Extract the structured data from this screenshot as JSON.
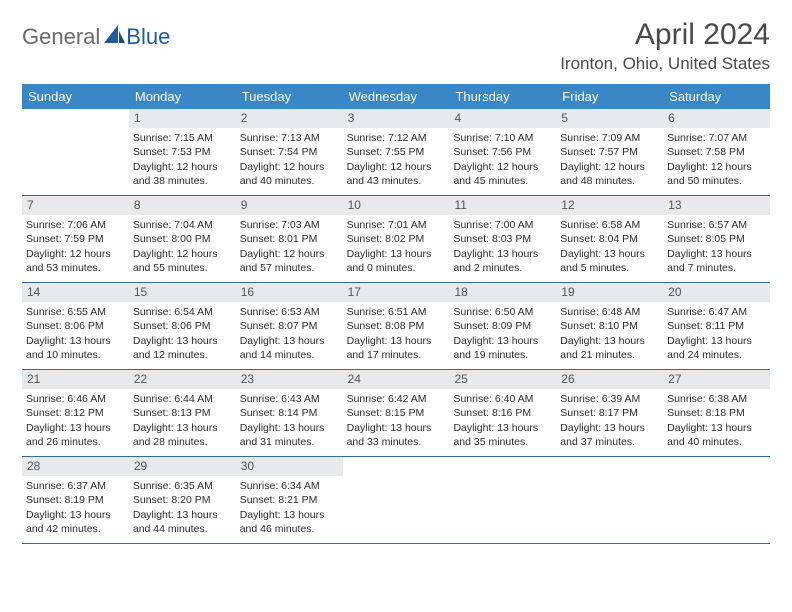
{
  "logo": {
    "text1": "General",
    "text2": "Blue"
  },
  "title": "April 2024",
  "location": "Ironton, Ohio, United States",
  "colors": {
    "header_bg": "#3a87c8",
    "header_text": "#ffffff",
    "daynum_bg": "#e8e9ea",
    "daynum_text": "#555555",
    "body_text": "#2b2b2b",
    "row_border": "#2f6aa3",
    "logo_gray": "#6a6a6a",
    "logo_blue": "#1f5c9e",
    "title_color": "#4a4a4a"
  },
  "dayNames": [
    "Sunday",
    "Monday",
    "Tuesday",
    "Wednesday",
    "Thursday",
    "Friday",
    "Saturday"
  ],
  "weeks": [
    [
      {
        "empty": true
      },
      {
        "num": "1",
        "sunrise": "7:15 AM",
        "sunset": "7:53 PM",
        "daylight": "12 hours and 38 minutes."
      },
      {
        "num": "2",
        "sunrise": "7:13 AM",
        "sunset": "7:54 PM",
        "daylight": "12 hours and 40 minutes."
      },
      {
        "num": "3",
        "sunrise": "7:12 AM",
        "sunset": "7:55 PM",
        "daylight": "12 hours and 43 minutes."
      },
      {
        "num": "4",
        "sunrise": "7:10 AM",
        "sunset": "7:56 PM",
        "daylight": "12 hours and 45 minutes."
      },
      {
        "num": "5",
        "sunrise": "7:09 AM",
        "sunset": "7:57 PM",
        "daylight": "12 hours and 48 minutes."
      },
      {
        "num": "6",
        "sunrise": "7:07 AM",
        "sunset": "7:58 PM",
        "daylight": "12 hours and 50 minutes."
      }
    ],
    [
      {
        "num": "7",
        "sunrise": "7:06 AM",
        "sunset": "7:59 PM",
        "daylight": "12 hours and 53 minutes."
      },
      {
        "num": "8",
        "sunrise": "7:04 AM",
        "sunset": "8:00 PM",
        "daylight": "12 hours and 55 minutes."
      },
      {
        "num": "9",
        "sunrise": "7:03 AM",
        "sunset": "8:01 PM",
        "daylight": "12 hours and 57 minutes."
      },
      {
        "num": "10",
        "sunrise": "7:01 AM",
        "sunset": "8:02 PM",
        "daylight": "13 hours and 0 minutes."
      },
      {
        "num": "11",
        "sunrise": "7:00 AM",
        "sunset": "8:03 PM",
        "daylight": "13 hours and 2 minutes."
      },
      {
        "num": "12",
        "sunrise": "6:58 AM",
        "sunset": "8:04 PM",
        "daylight": "13 hours and 5 minutes."
      },
      {
        "num": "13",
        "sunrise": "6:57 AM",
        "sunset": "8:05 PM",
        "daylight": "13 hours and 7 minutes."
      }
    ],
    [
      {
        "num": "14",
        "sunrise": "6:55 AM",
        "sunset": "8:06 PM",
        "daylight": "13 hours and 10 minutes."
      },
      {
        "num": "15",
        "sunrise": "6:54 AM",
        "sunset": "8:06 PM",
        "daylight": "13 hours and 12 minutes."
      },
      {
        "num": "16",
        "sunrise": "6:53 AM",
        "sunset": "8:07 PM",
        "daylight": "13 hours and 14 minutes."
      },
      {
        "num": "17",
        "sunrise": "6:51 AM",
        "sunset": "8:08 PM",
        "daylight": "13 hours and 17 minutes."
      },
      {
        "num": "18",
        "sunrise": "6:50 AM",
        "sunset": "8:09 PM",
        "daylight": "13 hours and 19 minutes."
      },
      {
        "num": "19",
        "sunrise": "6:48 AM",
        "sunset": "8:10 PM",
        "daylight": "13 hours and 21 minutes."
      },
      {
        "num": "20",
        "sunrise": "6:47 AM",
        "sunset": "8:11 PM",
        "daylight": "13 hours and 24 minutes."
      }
    ],
    [
      {
        "num": "21",
        "sunrise": "6:46 AM",
        "sunset": "8:12 PM",
        "daylight": "13 hours and 26 minutes."
      },
      {
        "num": "22",
        "sunrise": "6:44 AM",
        "sunset": "8:13 PM",
        "daylight": "13 hours and 28 minutes."
      },
      {
        "num": "23",
        "sunrise": "6:43 AM",
        "sunset": "8:14 PM",
        "daylight": "13 hours and 31 minutes."
      },
      {
        "num": "24",
        "sunrise": "6:42 AM",
        "sunset": "8:15 PM",
        "daylight": "13 hours and 33 minutes."
      },
      {
        "num": "25",
        "sunrise": "6:40 AM",
        "sunset": "8:16 PM",
        "daylight": "13 hours and 35 minutes."
      },
      {
        "num": "26",
        "sunrise": "6:39 AM",
        "sunset": "8:17 PM",
        "daylight": "13 hours and 37 minutes."
      },
      {
        "num": "27",
        "sunrise": "6:38 AM",
        "sunset": "8:18 PM",
        "daylight": "13 hours and 40 minutes."
      }
    ],
    [
      {
        "num": "28",
        "sunrise": "6:37 AM",
        "sunset": "8:19 PM",
        "daylight": "13 hours and 42 minutes."
      },
      {
        "num": "29",
        "sunrise": "6:35 AM",
        "sunset": "8:20 PM",
        "daylight": "13 hours and 44 minutes."
      },
      {
        "num": "30",
        "sunrise": "6:34 AM",
        "sunset": "8:21 PM",
        "daylight": "13 hours and 46 minutes."
      },
      {
        "empty": true
      },
      {
        "empty": true
      },
      {
        "empty": true
      },
      {
        "empty": true
      }
    ]
  ],
  "labels": {
    "sunrise": "Sunrise: ",
    "sunset": "Sunset: ",
    "daylight": "Daylight: "
  }
}
